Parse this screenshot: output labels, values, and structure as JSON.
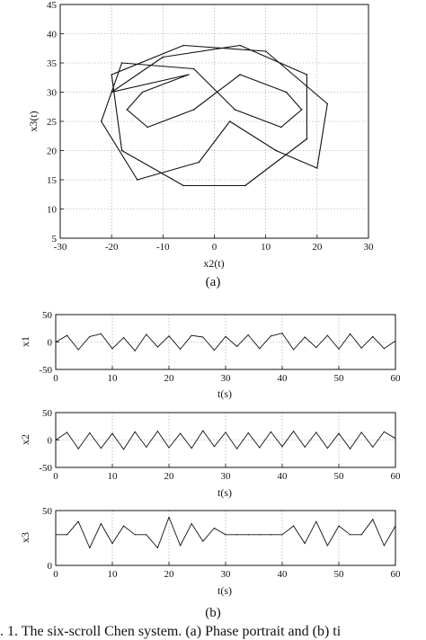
{
  "figure": {
    "caption": ". 1. The six-scroll Chen system. (a) Phase portrait and (b) ti",
    "label_a": "(a)",
    "label_b": "(b)"
  },
  "chart_data": [
    {
      "type": "line",
      "xlabel": "x2(t)",
      "ylabel": "x3(t)",
      "xlim": [
        -30,
        30
      ],
      "ylim": [
        5,
        45
      ],
      "xticks": [
        -30,
        -20,
        -10,
        0,
        10,
        20,
        30
      ],
      "yticks": [
        5,
        10,
        15,
        20,
        25,
        30,
        35,
        40,
        45
      ],
      "grid": true,
      "series": [
        {
          "points": [
            [
              -5,
              33
            ],
            [
              -14,
              30
            ],
            [
              -17,
              27
            ],
            [
              -13,
              24
            ],
            [
              -4,
              27
            ],
            [
              5,
              33
            ],
            [
              14,
              30
            ],
            [
              17,
              27
            ],
            [
              13,
              24
            ],
            [
              4,
              27
            ],
            [
              -4,
              34
            ],
            [
              -18,
              35
            ],
            [
              -22,
              25
            ],
            [
              -15,
              15
            ],
            [
              -3,
              18
            ],
            [
              3,
              25
            ],
            [
              12,
              20
            ],
            [
              20,
              17
            ],
            [
              22,
              28
            ],
            [
              10,
              37
            ],
            [
              -6,
              38
            ],
            [
              -20,
              33
            ],
            [
              -18,
              20
            ],
            [
              -6,
              14
            ],
            [
              6,
              14
            ],
            [
              18,
              22
            ],
            [
              18,
              33
            ],
            [
              5,
              38
            ],
            [
              -10,
              36
            ],
            [
              -20,
              30
            ]
          ]
        }
      ]
    },
    {
      "type": "line",
      "ylabel": "x1",
      "xlabel": "t(s)",
      "xlim": [
        0,
        60
      ],
      "ylim": [
        -50,
        50
      ],
      "xticks": [
        0,
        10,
        20,
        30,
        40,
        50,
        60
      ],
      "yticks": [
        -50,
        0,
        50
      ],
      "grid": true,
      "series": [
        {
          "x": [
            0,
            2,
            4,
            6,
            8,
            10,
            12,
            14,
            16,
            18,
            20,
            22,
            24,
            26,
            28,
            30,
            32,
            34,
            36,
            38,
            40,
            42,
            44,
            46,
            48,
            50,
            52,
            54,
            56,
            58,
            60
          ],
          "values": [
            0,
            12,
            -14,
            10,
            15,
            -12,
            8,
            -16,
            14,
            -9,
            11,
            -13,
            12,
            9,
            -15,
            10,
            -8,
            13,
            -12,
            11,
            16,
            -14,
            9,
            -10,
            12,
            -13,
            15,
            -11,
            10,
            -12,
            2
          ]
        }
      ]
    },
    {
      "type": "line",
      "ylabel": "x2",
      "xlabel": "t(s)",
      "xlim": [
        0,
        60
      ],
      "ylim": [
        -50,
        50
      ],
      "xticks": [
        0,
        10,
        20,
        30,
        40,
        50,
        60
      ],
      "yticks": [
        -50,
        0,
        50
      ],
      "grid": true,
      "series": [
        {
          "x": [
            0,
            2,
            4,
            6,
            8,
            10,
            12,
            14,
            16,
            18,
            20,
            22,
            24,
            26,
            28,
            30,
            32,
            34,
            36,
            38,
            40,
            42,
            44,
            46,
            48,
            50,
            52,
            54,
            56,
            58,
            60
          ],
          "values": [
            0,
            14,
            -16,
            13,
            -15,
            12,
            -17,
            15,
            -13,
            16,
            -14,
            12,
            -15,
            17,
            -12,
            14,
            -16,
            13,
            -14,
            15,
            -12,
            16,
            -13,
            14,
            -15,
            12,
            -16,
            14,
            -13,
            15,
            3
          ]
        }
      ]
    },
    {
      "type": "line",
      "ylabel": "x3",
      "xlabel": "t(s)",
      "xlim": [
        0,
        60
      ],
      "ylim": [
        0,
        50
      ],
      "xticks": [
        0,
        10,
        20,
        30,
        40,
        50,
        60
      ],
      "yticks": [
        0,
        50
      ],
      "grid": true,
      "series": [
        {
          "x": [
            0,
            2,
            4,
            6,
            8,
            10,
            12,
            14,
            16,
            18,
            20,
            22,
            24,
            26,
            28,
            30,
            32,
            34,
            36,
            38,
            40,
            42,
            44,
            46,
            48,
            50,
            52,
            54,
            56,
            58,
            60
          ],
          "values": [
            28,
            28,
            40,
            16,
            38,
            20,
            36,
            28,
            28,
            16,
            44,
            18,
            38,
            22,
            34,
            28,
            28,
            28,
            28,
            28,
            28,
            36,
            20,
            40,
            18,
            36,
            28,
            28,
            42,
            18,
            36
          ]
        }
      ]
    }
  ]
}
